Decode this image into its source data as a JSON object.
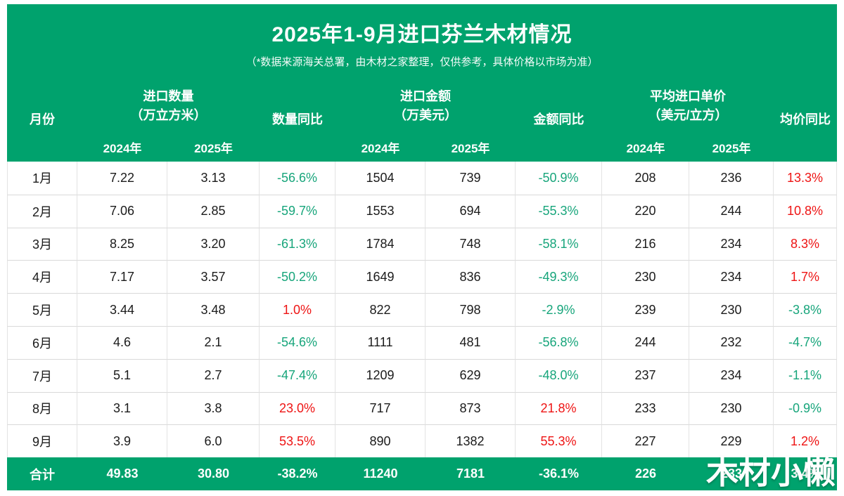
{
  "header": {
    "title": "2025年1-9月进口芬兰木材情况",
    "subtitle": "（*数据来源海关总署，由木材之家整理，仅供参考，具体价格以市场为准）",
    "col_month": "月份",
    "grp_qty_1": "进口数量",
    "grp_qty_2": "（万立方米）",
    "col_qty_yoy": "数量同比",
    "grp_amt_1": "进口金额",
    "grp_amt_2": "（万美元）",
    "col_amt_yoy": "金额同比",
    "grp_price_1": "平均进口单价",
    "grp_price_2": "（美元/立方）",
    "col_price_yoy": "均价同比",
    "y2024": "2024年",
    "y2025": "2025年"
  },
  "chart_data": {
    "type": "table",
    "title": "2025年1-9月进口芬兰木材情况",
    "columns": [
      "月份",
      "进口数量（万立方米）2024年",
      "进口数量（万立方米）2025年",
      "数量同比",
      "进口金额（万美元）2024年",
      "进口金额（万美元）2025年",
      "金额同比",
      "平均进口单价（美元/立方）2024年",
      "平均进口单价（美元/立方）2025年",
      "均价同比"
    ],
    "rows": [
      [
        "1月",
        "7.22",
        "3.13",
        "-56.6%",
        "1504",
        "739",
        "-50.9%",
        "208",
        "236",
        "13.3%"
      ],
      [
        "2月",
        "7.06",
        "2.85",
        "-59.7%",
        "1553",
        "694",
        "-55.3%",
        "220",
        "244",
        "10.8%"
      ],
      [
        "3月",
        "8.25",
        "3.20",
        "-61.3%",
        "1784",
        "748",
        "-58.1%",
        "216",
        "234",
        "8.3%"
      ],
      [
        "4月",
        "7.17",
        "3.57",
        "-50.2%",
        "1649",
        "836",
        "-49.3%",
        "230",
        "234",
        "1.7%"
      ],
      [
        "5月",
        "3.44",
        "3.48",
        "1.0%",
        "822",
        "798",
        "-2.9%",
        "239",
        "230",
        "-3.8%"
      ],
      [
        "6月",
        "4.6",
        "2.1",
        "-54.6%",
        "1111",
        "481",
        "-56.8%",
        "244",
        "232",
        "-4.7%"
      ],
      [
        "7月",
        "5.1",
        "2.7",
        "-47.4%",
        "1209",
        "629",
        "-48.0%",
        "237",
        "234",
        "-1.1%"
      ],
      [
        "8月",
        "3.1",
        "3.8",
        "23.0%",
        "717",
        "873",
        "21.8%",
        "233",
        "230",
        "-0.9%"
      ],
      [
        "9月",
        "3.9",
        "6.0",
        "53.5%",
        "890",
        "1382",
        "55.3%",
        "227",
        "229",
        "1.2%"
      ]
    ],
    "total_row": [
      "合计",
      "49.83",
      "30.80",
      "-38.2%",
      "11240",
      "7181",
      "-36.1%",
      "226",
      "233",
      "3.4%"
    ],
    "yoy_directions": [
      {
        "qty": "down",
        "amt": "down",
        "price": "up"
      },
      {
        "qty": "down",
        "amt": "down",
        "price": "up"
      },
      {
        "qty": "down",
        "amt": "down",
        "price": "up"
      },
      {
        "qty": "down",
        "amt": "down",
        "price": "up"
      },
      {
        "qty": "up",
        "amt": "down",
        "price": "down"
      },
      {
        "qty": "down",
        "amt": "down",
        "price": "down"
      },
      {
        "qty": "down",
        "amt": "down",
        "price": "down"
      },
      {
        "qty": "up",
        "amt": "up",
        "price": "down"
      },
      {
        "qty": "up",
        "amt": "up",
        "price": "up"
      }
    ]
  },
  "watermarks": {
    "center": "木材之家",
    "corner": "木材小懒"
  },
  "colors": {
    "theme_green": "#00a26d",
    "yoy_up_red": "#ee1414",
    "yoy_down_green": "#17a57b",
    "watermark_gray": "#bdbdbd"
  }
}
